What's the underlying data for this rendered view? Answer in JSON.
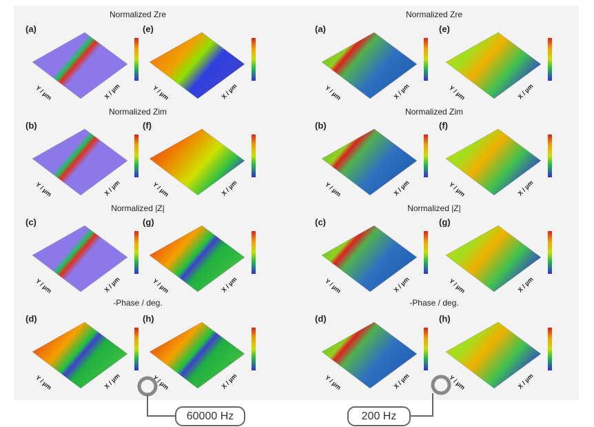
{
  "axis_labels": {
    "x": "X / µm",
    "y": "Y / µm"
  },
  "columns": [
    {
      "sections": [
        {
          "title": "Normalized Zre",
          "panels": [
            "(a)",
            "(e)"
          ]
        },
        {
          "title": "Normalized Zim",
          "panels": [
            "(b)",
            "(f)"
          ]
        },
        {
          "title": "Normalized |Z|",
          "panels": [
            "(c)",
            "(g)"
          ]
        },
        {
          "title": "-Phase / deg.",
          "panels": [
            "(d)",
            "(h)"
          ]
        }
      ]
    },
    {
      "sections": [
        {
          "title": "Normalized Zre",
          "panels": [
            "(a)",
            "(e)"
          ]
        },
        {
          "title": "Normalized Zim",
          "panels": [
            "(b)",
            "(f)"
          ]
        },
        {
          "title": "Normalized |Z|",
          "panels": [
            "(c)",
            "(g)"
          ]
        },
        {
          "title": "-Phase / deg.",
          "panels": [
            "(d)",
            "(h)"
          ]
        }
      ]
    }
  ],
  "callouts": [
    "60000 Hz",
    "200 Hz"
  ]
}
